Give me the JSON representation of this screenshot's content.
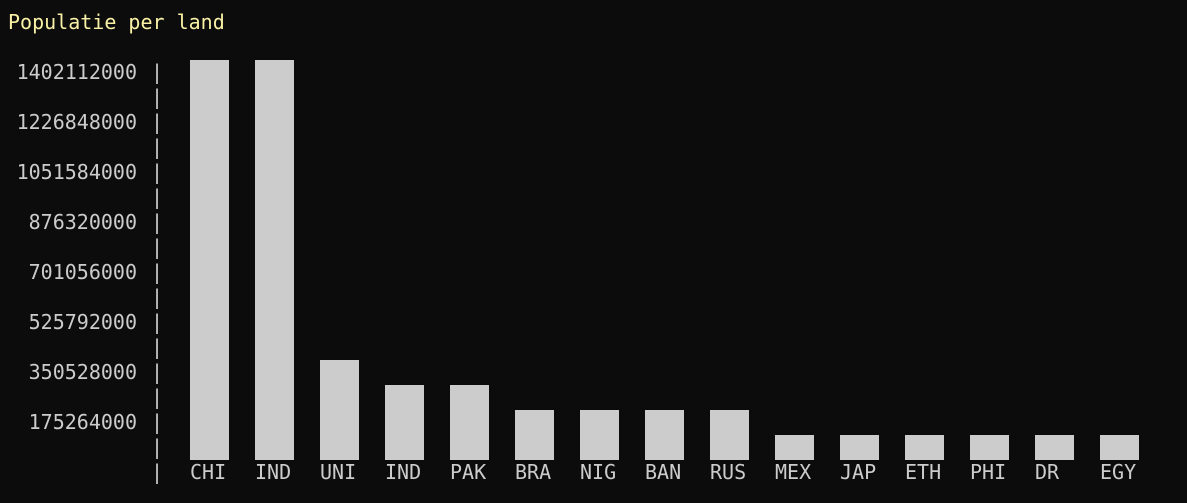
{
  "colors": {
    "background": "#0c0c0c",
    "bar": "#cccccc",
    "title": "#f9f1a5",
    "text": "#cccccc"
  },
  "chart_data": {
    "type": "bar",
    "title": "Populatie per land",
    "xlabel": "",
    "ylabel": "",
    "grid": false,
    "categories": [
      "CHI",
      "IND",
      "UNI",
      "IND",
      "PAK",
      "BRA",
      "NIG",
      "BAN",
      "RUS",
      "MEX",
      "JAP",
      "ETH",
      "PHI",
      "DR",
      "EGY"
    ],
    "values": [
      1402112000,
      1380004385,
      329484123,
      273523621,
      220892331,
      212559409,
      206139587,
      164689383,
      145934460,
      128932753,
      125836021,
      114963583,
      109581085,
      101780263,
      102334403
    ],
    "yticks": [
      "1402112000",
      "1226848000",
      "1051584000",
      "876320000",
      "701056000",
      "525792000",
      "350528000",
      "175264000"
    ],
    "ylim": [
      0,
      1402112000
    ]
  }
}
